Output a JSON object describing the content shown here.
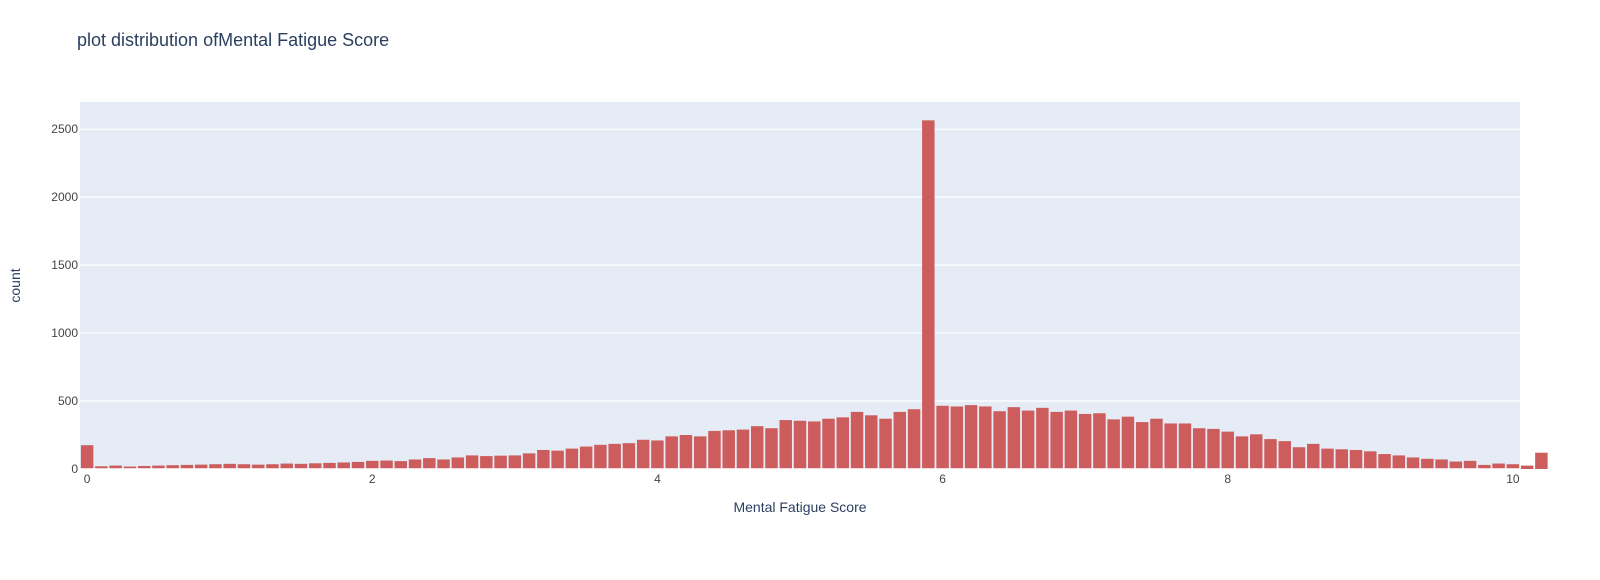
{
  "chart_data": {
    "type": "bar",
    "title": "plot distribution ofMental Fatigue Score",
    "xlabel": "Mental Fatigue Score",
    "ylabel": "count",
    "xlim": [
      -0.05,
      10.05
    ],
    "ylim": [
      0,
      2700
    ],
    "bin_width": 0.1,
    "bin_start": 0.0,
    "x_ticks": [
      0,
      2,
      4,
      6,
      8,
      10
    ],
    "y_ticks": [
      0,
      500,
      1000,
      1500,
      2000,
      2500
    ],
    "grid": true,
    "legend": "none",
    "colors": {
      "bar": "#cd5c5c",
      "plot_bg": "#e5ecf6",
      "grid": "#ffffff",
      "text": "#2a3f5f",
      "tick_text": "#444444"
    },
    "values": [
      175,
      20,
      25,
      18,
      22,
      25,
      28,
      30,
      32,
      35,
      38,
      35,
      32,
      35,
      40,
      38,
      42,
      45,
      48,
      52,
      60,
      62,
      58,
      70,
      80,
      70,
      85,
      100,
      95,
      98,
      100,
      115,
      140,
      135,
      150,
      165,
      178,
      185,
      190,
      215,
      210,
      240,
      250,
      240,
      280,
      285,
      290,
      315,
      300,
      360,
      355,
      350,
      370,
      380,
      420,
      395,
      370,
      420,
      440,
      2565,
      465,
      460,
      470,
      460,
      425,
      455,
      430,
      450,
      420,
      430,
      405,
      410,
      365,
      385,
      345,
      370,
      335,
      335,
      300,
      295,
      275,
      240,
      255,
      220,
      205,
      160,
      185,
      150,
      145,
      140,
      130,
      110,
      100,
      85,
      75,
      70,
      55,
      60,
      30,
      40,
      35,
      25,
      120
    ]
  }
}
